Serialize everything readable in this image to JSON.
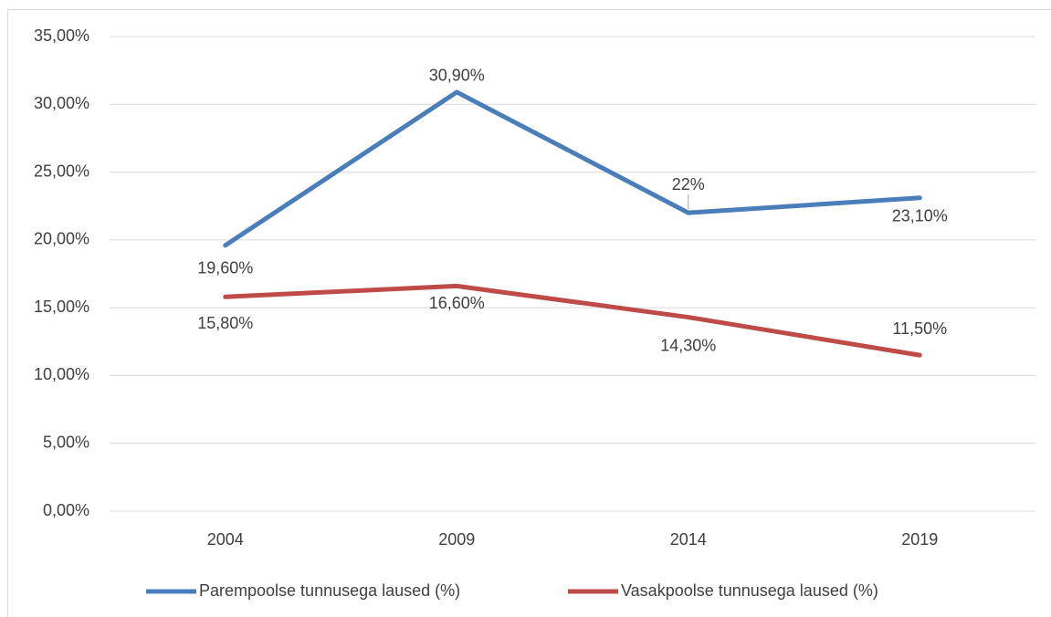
{
  "chart_data": {
    "type": "line",
    "categories": [
      "2004",
      "2009",
      "2014",
      "2019"
    ],
    "series": [
      {
        "name": "Parempoolse tunnusega laused (%)",
        "color": "#4a7ebb",
        "values": [
          19.6,
          30.9,
          22,
          23.1
        ],
        "value_labels": [
          "19,60%",
          "30,90%",
          "22%",
          "23,10%"
        ]
      },
      {
        "name": "Vasakpoolse tunnusega laused (%)",
        "color": "#be4b48",
        "values": [
          15.8,
          16.6,
          14.3,
          11.5
        ],
        "value_labels": [
          "15,80%",
          "16,60%",
          "14,30%",
          "11,50%"
        ]
      }
    ],
    "ylim": [
      0,
      35
    ],
    "yticks": [
      {
        "value": 0,
        "label": "0,00%"
      },
      {
        "value": 5,
        "label": "5,00%"
      },
      {
        "value": 10,
        "label": "10,00%"
      },
      {
        "value": 15,
        "label": "15,00%"
      },
      {
        "value": 20,
        "label": "20,00%"
      },
      {
        "value": 25,
        "label": "25,00%"
      },
      {
        "value": 30,
        "label": "30,00%"
      },
      {
        "value": 35,
        "label": "35,00%"
      }
    ],
    "grid": true
  }
}
